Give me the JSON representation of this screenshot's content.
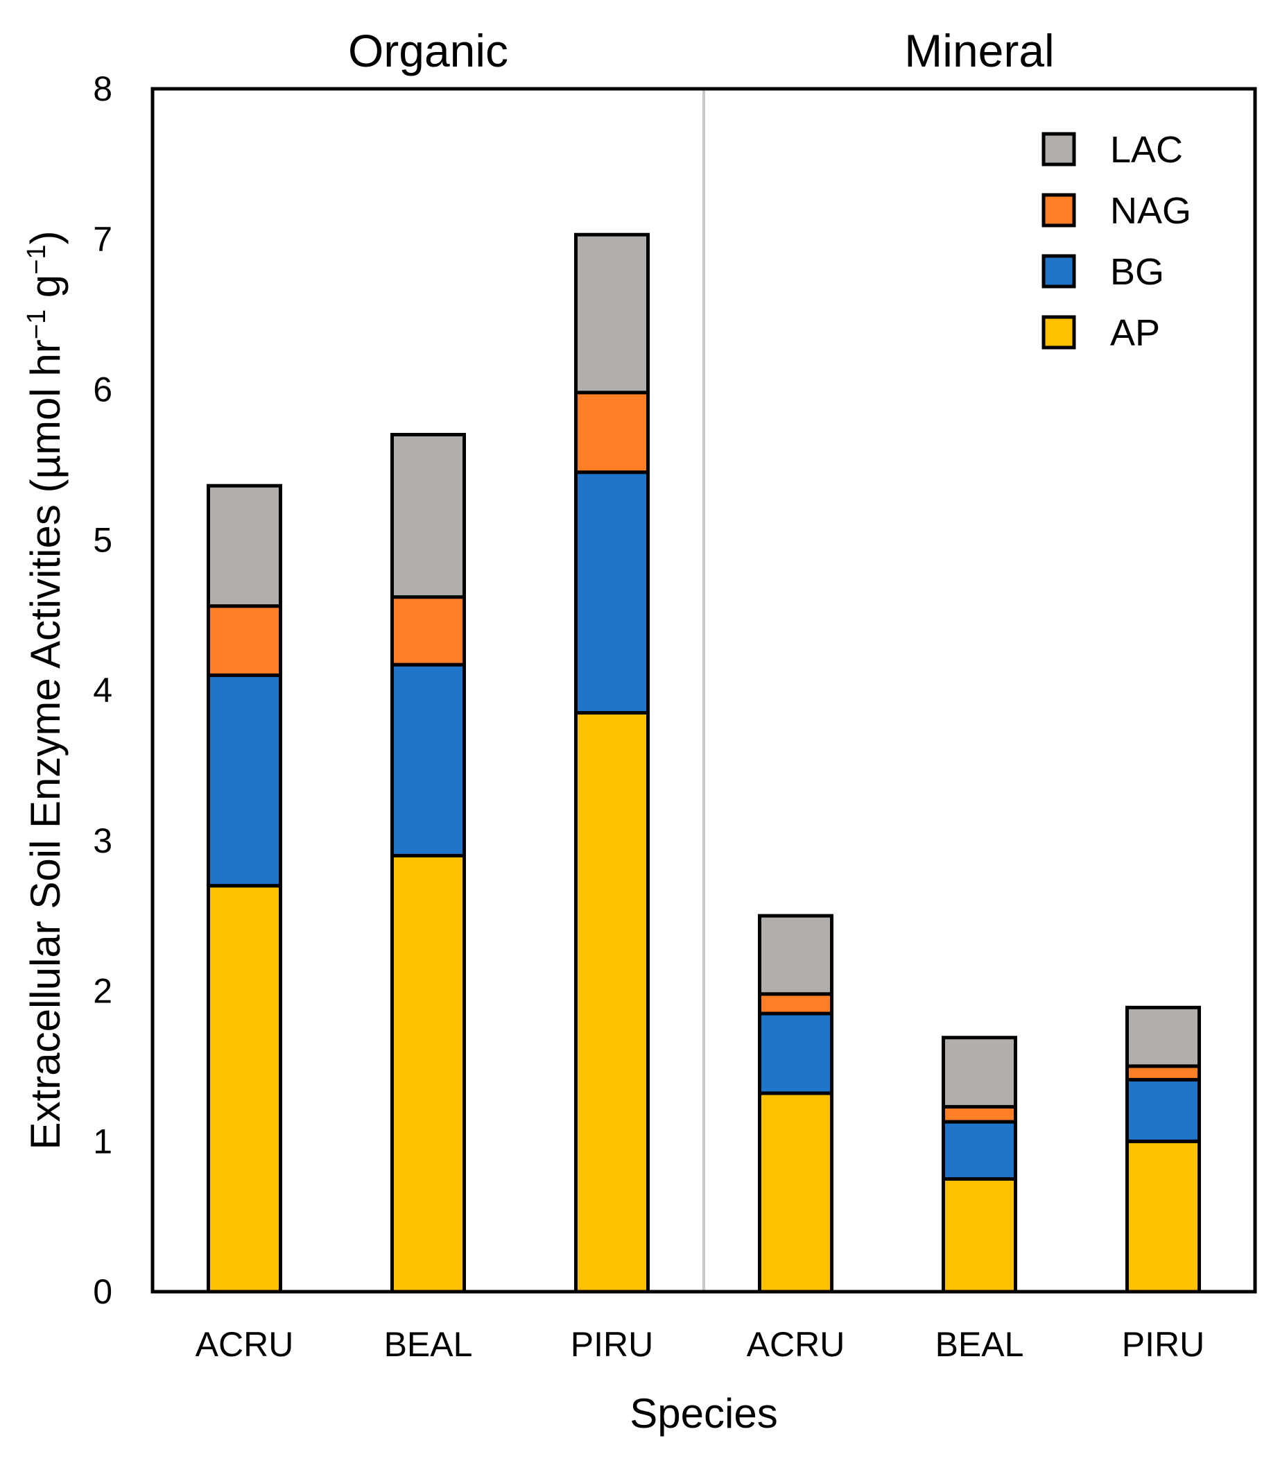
{
  "chart_data": {
    "type": "bar",
    "stacked": true,
    "panels": [
      {
        "label": "Organic",
        "categories": [
          "ACRU",
          "BEAL",
          "PIRU"
        ]
      },
      {
        "label": "Mineral",
        "categories": [
          "ACRU",
          "BEAL",
          "PIRU"
        ]
      }
    ],
    "series": [
      {
        "name": "AP",
        "color": "#FFC000",
        "values": [
          2.7,
          2.9,
          3.85,
          1.32,
          0.75,
          1.0
        ]
      },
      {
        "name": "BG",
        "color": "#1F75C9",
        "values": [
          1.4,
          1.27,
          1.6,
          0.53,
          0.38,
          0.41
        ]
      },
      {
        "name": "NAG",
        "color": "#FF7F27",
        "values": [
          0.46,
          0.45,
          0.53,
          0.13,
          0.1,
          0.09
        ]
      },
      {
        "name": "LAC",
        "color": "#B2AEAB",
        "values": [
          0.8,
          1.08,
          1.05,
          0.52,
          0.46,
          0.39
        ]
      }
    ],
    "legend_order": [
      "LAC",
      "NAG",
      "BG",
      "AP"
    ],
    "legend_position": "top-right",
    "xlabel": "Species",
    "ylabel_main": "Extracellular Soil Enzyme Activities (µmol hr",
    "ylabel_sup1": "−1",
    "ylabel_mid": " g",
    "ylabel_sup2": "−1",
    "ylabel_end": ")",
    "ylim": [
      0,
      8
    ],
    "yticks": [
      0,
      1,
      2,
      3,
      4,
      5,
      6,
      7,
      8
    ],
    "grid": false,
    "panel_divider_color": "#C8C8C8"
  }
}
